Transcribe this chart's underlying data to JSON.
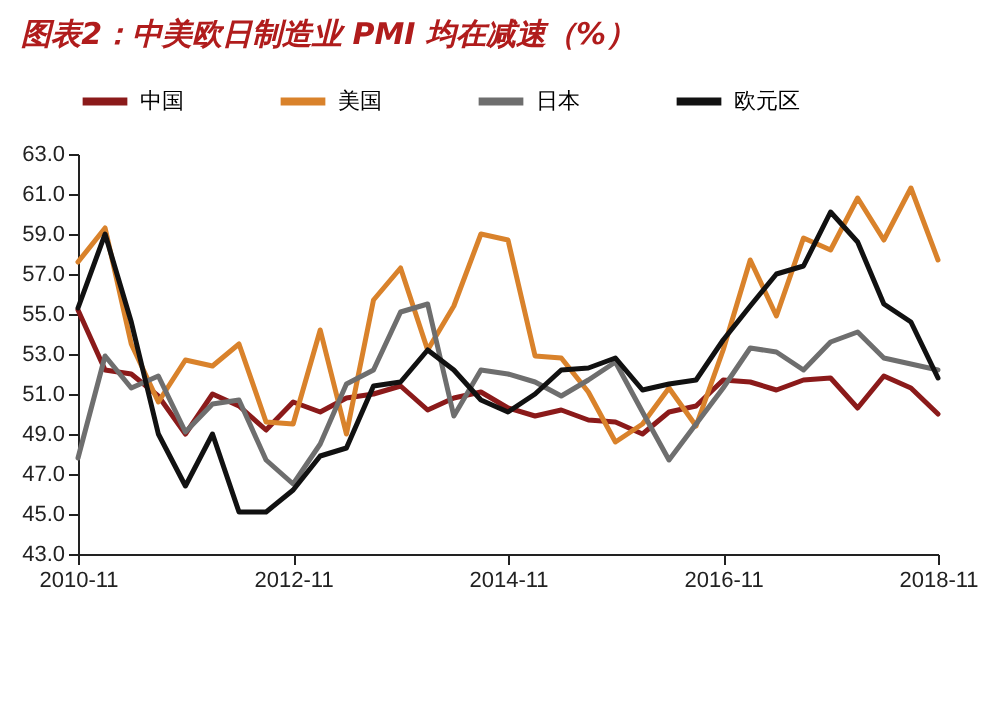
{
  "chart_data": {
    "type": "line",
    "title": "图表2：中美欧日制造业 PMI 均在减速（%）",
    "x": [
      "2010-11",
      "2011-02",
      "2011-05",
      "2011-08",
      "2011-11",
      "2012-02",
      "2012-05",
      "2012-08",
      "2012-11",
      "2013-02",
      "2013-05",
      "2013-08",
      "2013-11",
      "2014-02",
      "2014-05",
      "2014-08",
      "2014-11",
      "2015-02",
      "2015-05",
      "2015-08",
      "2015-11",
      "2016-02",
      "2016-05",
      "2016-08",
      "2016-11",
      "2017-02",
      "2017-05",
      "2017-08",
      "2017-11",
      "2018-02",
      "2018-05",
      "2018-08",
      "2018-11"
    ],
    "series": [
      {
        "name": "中国",
        "color": "#8b1a1a",
        "values": [
          55.2,
          52.2,
          52.0,
          50.9,
          49.0,
          51.0,
          50.4,
          49.2,
          50.6,
          50.1,
          50.8,
          51.0,
          51.4,
          50.2,
          50.8,
          51.1,
          50.3,
          49.9,
          50.2,
          49.7,
          49.6,
          49.0,
          50.1,
          50.4,
          51.7,
          51.6,
          51.2,
          51.7,
          51.8,
          50.3,
          51.9,
          51.3,
          50.0
        ]
      },
      {
        "name": "美国",
        "color": "#d9822b",
        "values": [
          57.6,
          59.3,
          53.5,
          50.6,
          52.7,
          52.4,
          53.5,
          49.6,
          49.5,
          54.2,
          49.0,
          55.7,
          57.3,
          53.2,
          55.4,
          59.0,
          58.7,
          52.9,
          52.8,
          51.1,
          48.6,
          49.5,
          51.3,
          49.4,
          53.2,
          57.7,
          54.9,
          58.8,
          58.2,
          60.8,
          58.7,
          61.3,
          57.7
        ]
      },
      {
        "name": "日本",
        "color": "#6e6e6e",
        "values": [
          47.8,
          52.9,
          51.3,
          51.9,
          49.1,
          50.5,
          50.7,
          47.7,
          46.5,
          48.5,
          51.5,
          52.2,
          55.1,
          55.5,
          49.9,
          52.2,
          52.0,
          51.6,
          50.9,
          51.7,
          52.6,
          50.1,
          47.7,
          49.5,
          51.3,
          53.3,
          53.1,
          52.2,
          53.6,
          54.1,
          52.8,
          52.5,
          52.2
        ]
      },
      {
        "name": "欧元区",
        "color": "#111111",
        "values": [
          55.3,
          59.0,
          54.6,
          49.0,
          46.4,
          49.0,
          45.1,
          45.1,
          46.2,
          47.9,
          48.3,
          51.4,
          51.6,
          53.2,
          52.2,
          50.7,
          50.1,
          51.0,
          52.2,
          52.3,
          52.8,
          51.2,
          51.5,
          51.7,
          53.7,
          55.4,
          57.0,
          57.4,
          60.1,
          58.6,
          55.5,
          54.6,
          51.8
        ]
      }
    ],
    "xlim": [
      "2010-11",
      "2018-11"
    ],
    "xticks": [
      "2010-11",
      "2012-11",
      "2014-11",
      "2016-11",
      "2018-11"
    ],
    "ylim": [
      43,
      63
    ],
    "yticks": [
      {
        "value": 43,
        "label": "43.0"
      },
      {
        "value": 45,
        "label": "45.0"
      },
      {
        "value": 47,
        "label": "47.0"
      },
      {
        "value": 49,
        "label": "49.0"
      },
      {
        "value": 51,
        "label": "51.0"
      },
      {
        "value": 53,
        "label": "53.0"
      },
      {
        "value": 55,
        "label": "55.0"
      },
      {
        "value": 57,
        "label": "57.0"
      },
      {
        "value": 59,
        "label": "59.0"
      },
      {
        "value": 61,
        "label": "61.0"
      },
      {
        "value": 63,
        "label": "63.0"
      }
    ],
    "legend": "top",
    "grid": false,
    "marker": "none",
    "line_style": "solid"
  }
}
